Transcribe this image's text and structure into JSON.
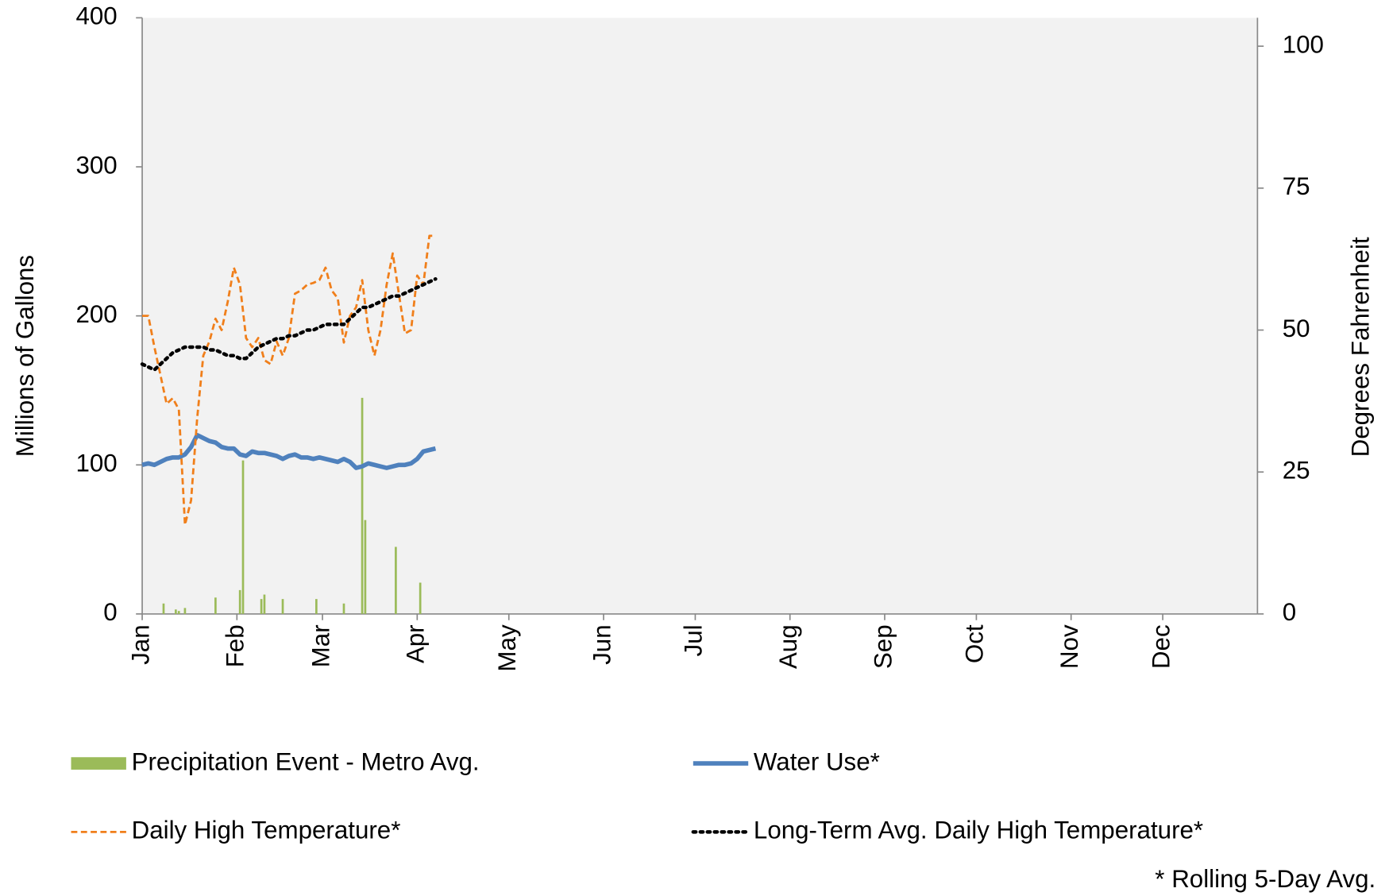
{
  "chart_data": {
    "type": "combo",
    "y_label": "Millions of Gallons",
    "y2_label": "Degrees Fahrenheit",
    "note": "* Rolling 5-Day Avg.",
    "xlim": [
      1,
      366
    ],
    "xticks": [
      {
        "value": 1,
        "label": "Jan"
      },
      {
        "value": 32,
        "label": "Feb"
      },
      {
        "value": 60,
        "label": "Mar"
      },
      {
        "value": 91,
        "label": "Apr"
      },
      {
        "value": 121,
        "label": "May"
      },
      {
        "value": 152,
        "label": "Jun"
      },
      {
        "value": 182,
        "label": "Jul"
      },
      {
        "value": 213,
        "label": "Aug"
      },
      {
        "value": 244,
        "label": "Sep"
      },
      {
        "value": 274,
        "label": "Oct"
      },
      {
        "value": 305,
        "label": "Nov"
      },
      {
        "value": 335,
        "label": "Dec"
      }
    ],
    "ylim": [
      0,
      400
    ],
    "yticks": [
      0,
      100,
      200,
      300,
      400
    ],
    "y2lim": [
      0,
      105
    ],
    "y2ticks": [
      0,
      25,
      50,
      75,
      100
    ],
    "plot_background": "#f2f2f2",
    "series": [
      {
        "name": "Precipitation Event - Metro Avg.",
        "type": "bar",
        "color": "#9bbb59",
        "x": [
          8,
          12,
          13,
          15,
          25,
          33,
          34,
          40,
          41,
          47,
          58,
          67,
          73,
          74,
          84,
          92
        ],
        "values": [
          7,
          3,
          2,
          4,
          11,
          16,
          103,
          10,
          13,
          10,
          10,
          7,
          145,
          63,
          45,
          21
        ]
      },
      {
        "name": "Water Use*",
        "type": "line",
        "color": "#4f81bd",
        "style": "solid",
        "x": [
          1,
          3,
          5,
          7,
          9,
          11,
          13,
          15,
          17,
          19,
          21,
          23,
          25,
          27,
          29,
          31,
          33,
          35,
          37,
          39,
          41,
          43,
          45,
          47,
          49,
          51,
          53,
          55,
          57,
          59,
          61,
          63,
          65,
          67,
          69,
          71,
          73,
          75,
          77,
          79,
          81,
          83,
          85,
          87,
          89,
          91,
          93,
          95,
          97
        ],
        "values": [
          100,
          101,
          100,
          102,
          104,
          105,
          105,
          107,
          112,
          120,
          118,
          116,
          115,
          112,
          111,
          111,
          107,
          106,
          109,
          108,
          108,
          107,
          106,
          104,
          106,
          107,
          105,
          105,
          104,
          105,
          104,
          103,
          102,
          104,
          102,
          98,
          99,
          101,
          100,
          99,
          98,
          99,
          100,
          100,
          101,
          104,
          109,
          110,
          111
        ]
      },
      {
        "name": "Daily High Temperature*",
        "type": "line",
        "axis": "y2",
        "color": "#f07f1b",
        "style": "dashed",
        "x": [
          1,
          3,
          5,
          7,
          9,
          11,
          13,
          15,
          17,
          19,
          21,
          23,
          25,
          27,
          29,
          31,
          33,
          35,
          37,
          39,
          41,
          43,
          45,
          47,
          49,
          51,
          53,
          55,
          57,
          59,
          61,
          63,
          65,
          67,
          69,
          71,
          73,
          75,
          77,
          79,
          81,
          83,
          85,
          87,
          89,
          91,
          93,
          95,
          97
        ],
        "values": [
          52.5,
          52.5,
          47,
          42,
          37,
          38,
          36,
          15.7,
          20,
          34.5,
          45.5,
          48,
          52,
          50,
          55,
          61,
          58,
          48.6,
          47,
          48.6,
          44.7,
          44,
          48,
          45.5,
          48.6,
          56.4,
          57,
          58,
          58.3,
          58.8,
          61,
          57,
          55.6,
          47.8,
          52.5,
          54,
          58.8,
          50,
          45.5,
          50,
          58,
          63.5,
          56.4,
          49.4,
          50,
          59.6,
          58,
          66.6,
          66.6
        ]
      },
      {
        "name": "Long-Term Avg. Daily High Temperature*",
        "type": "line",
        "axis": "y2",
        "color": "#000000",
        "style": "dotted",
        "x": [
          1,
          3,
          5,
          7,
          9,
          11,
          13,
          15,
          17,
          19,
          21,
          23,
          25,
          27,
          29,
          31,
          33,
          35,
          37,
          39,
          41,
          43,
          45,
          47,
          49,
          51,
          53,
          55,
          57,
          59,
          61,
          63,
          65,
          67,
          69,
          71,
          73,
          75,
          77,
          79,
          81,
          83,
          85,
          87,
          89,
          91,
          93,
          95,
          97
        ],
        "values": [
          44,
          43.5,
          43,
          44,
          45,
          46,
          46.5,
          47,
          47,
          47,
          47,
          46.5,
          46.5,
          46,
          45.5,
          45.5,
          45,
          45,
          46,
          47,
          47.5,
          48,
          48.5,
          48.5,
          49,
          49,
          49.5,
          50,
          50,
          50.5,
          51,
          51,
          51,
          51,
          52,
          53,
          54,
          54,
          54.5,
          55,
          55.5,
          56,
          56,
          56.5,
          57,
          57.5,
          58,
          58.5,
          59
        ]
      }
    ]
  }
}
